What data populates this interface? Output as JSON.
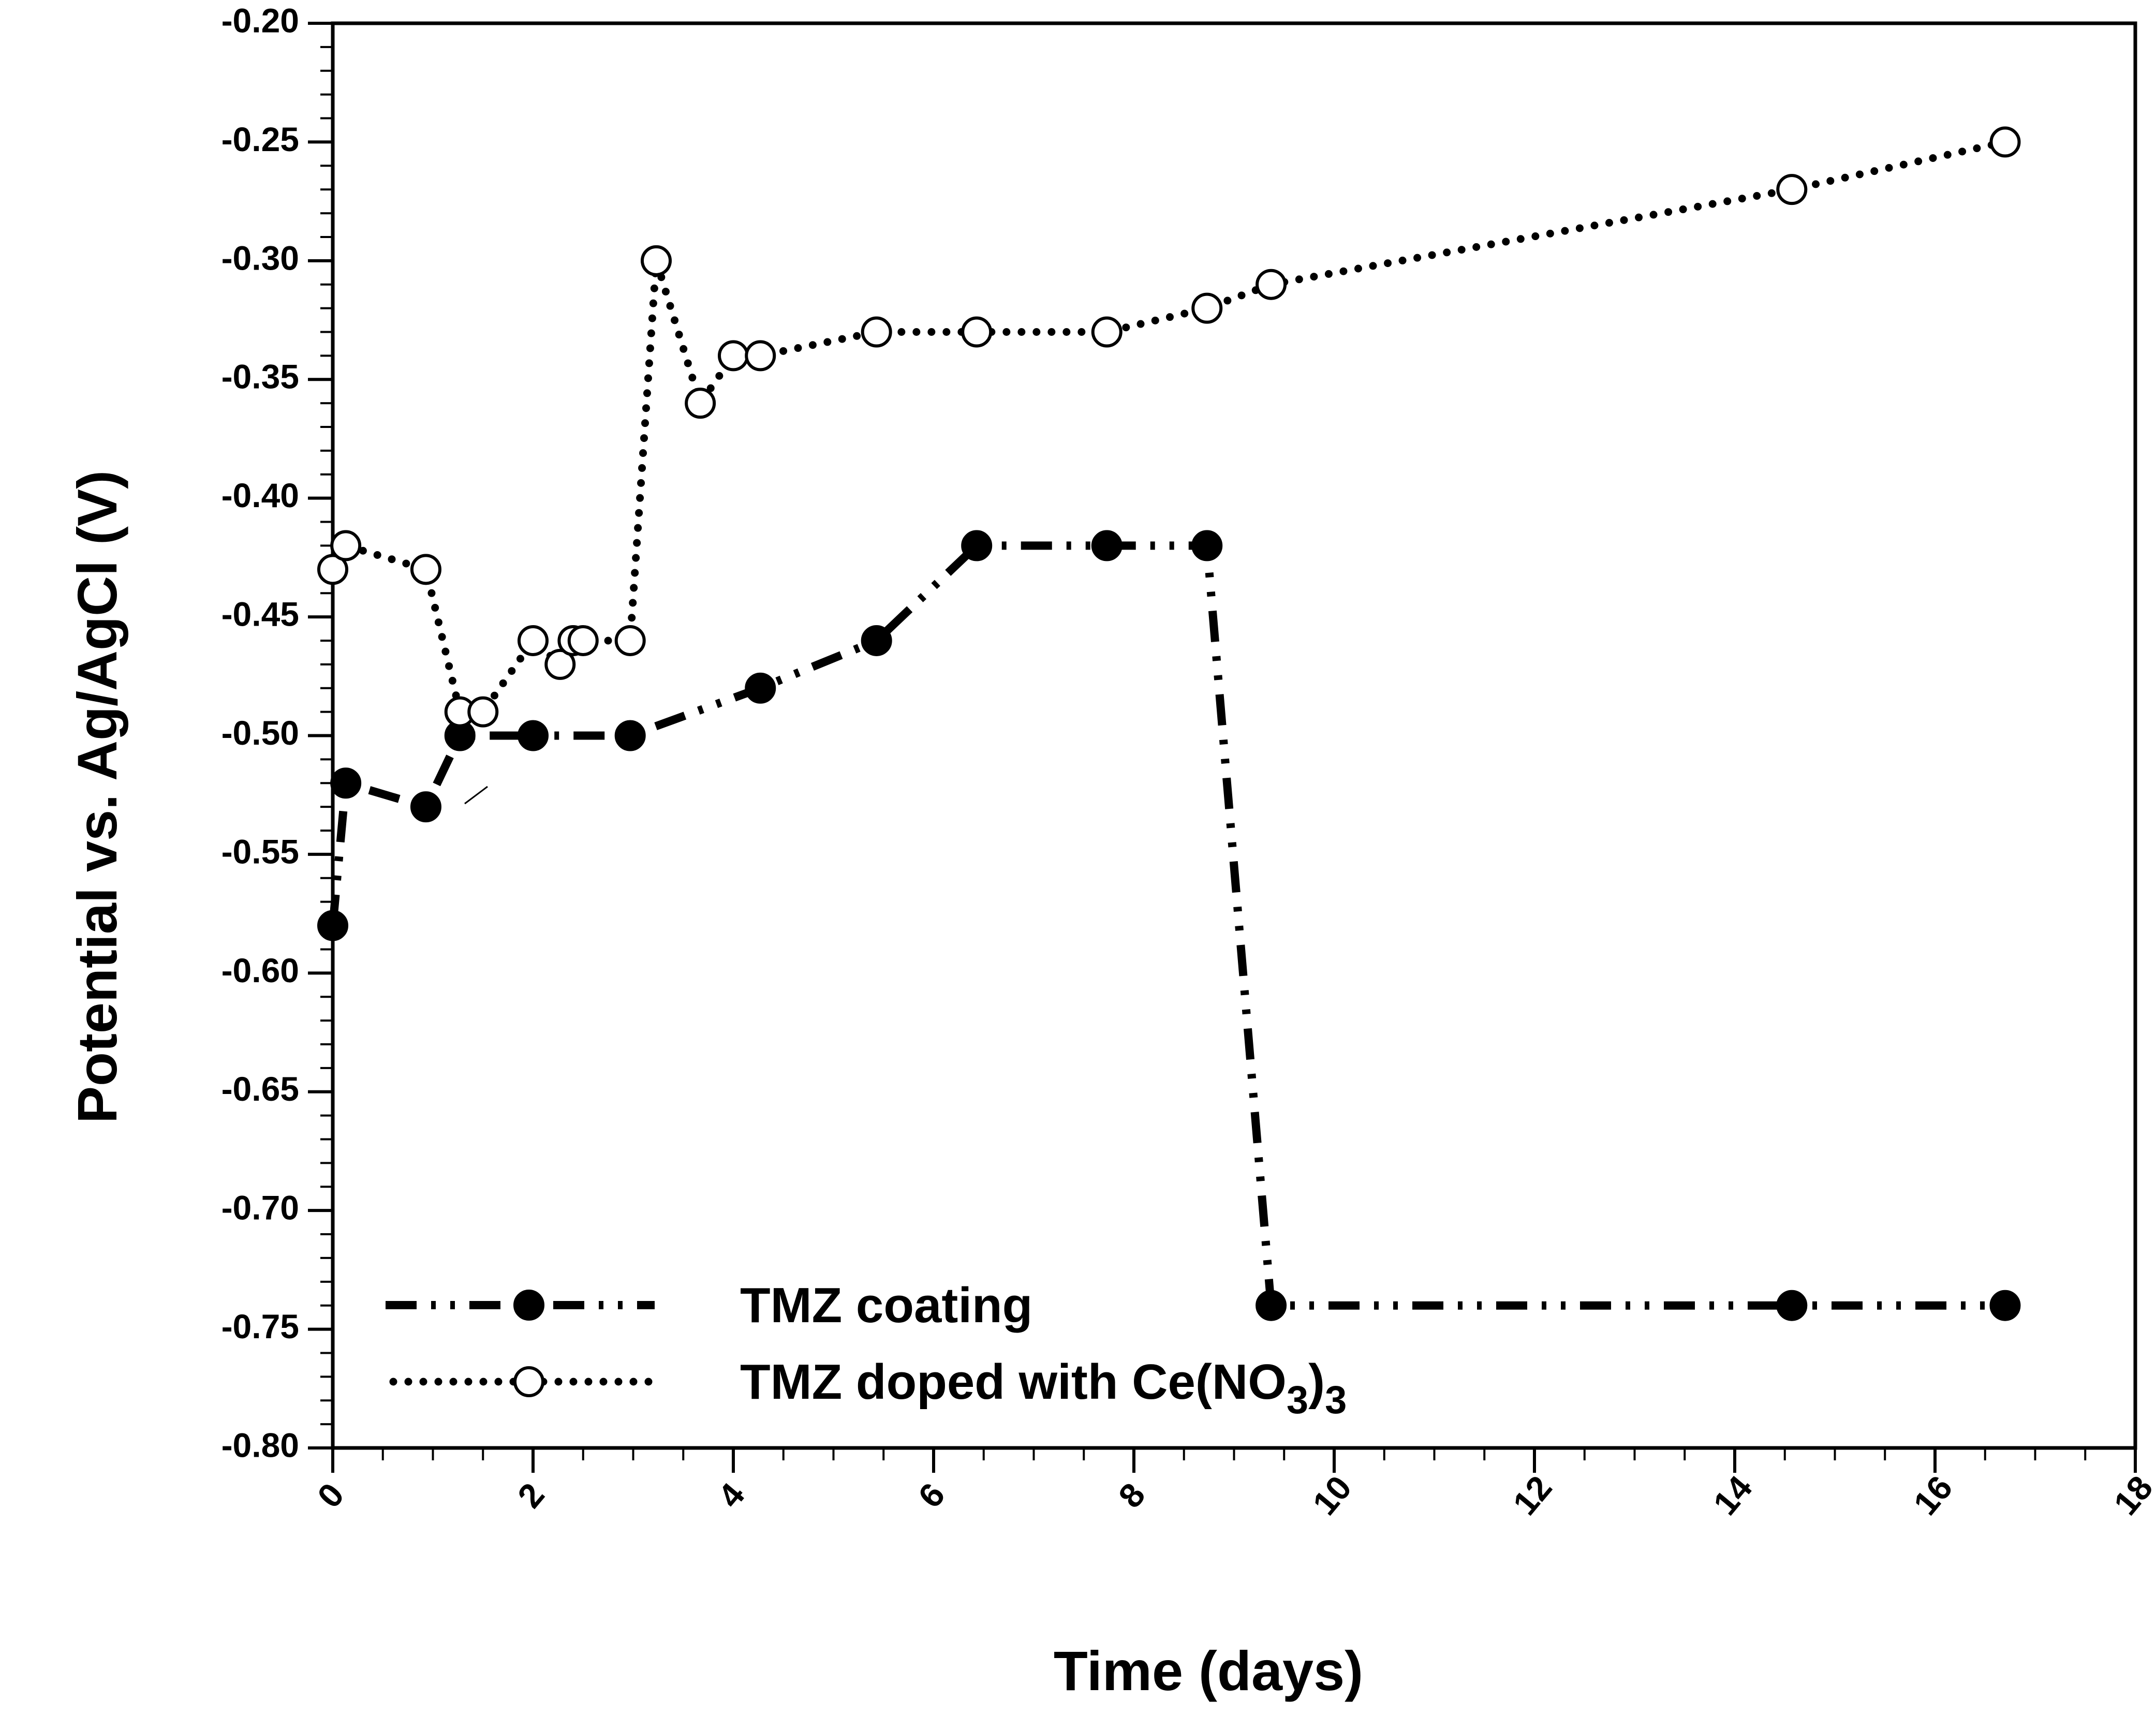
{
  "chart_data": {
    "type": "line",
    "title": "",
    "xlabel": "Time (days)",
    "ylabel": "Potential vs. Ag/AgCl (V)",
    "xlim": [
      0,
      18
    ],
    "ylim": [
      -0.8,
      -0.2
    ],
    "x_ticks": [
      0,
      2,
      4,
      6,
      8,
      10,
      12,
      14,
      16,
      18
    ],
    "x_tick_labels": [
      "0",
      "2",
      "4",
      "6",
      "8",
      "10",
      "12",
      "14",
      "16",
      "18"
    ],
    "y_ticks": [
      -0.2,
      -0.25,
      -0.3,
      -0.35,
      -0.4,
      -0.45,
      -0.5,
      -0.55,
      -0.6,
      -0.65,
      -0.7,
      -0.75,
      -0.8
    ],
    "y_tick_labels": [
      "-0.20",
      "-0.25",
      "-0.30",
      "-0.35",
      "-0.40",
      "-0.45",
      "-0.50",
      "-0.55",
      "-0.60",
      "-0.65",
      "-0.70",
      "-0.75",
      "-0.80"
    ],
    "grid": false,
    "legend_position": "bottom-left",
    "series": [
      {
        "name": "TMZ coating",
        "marker": "filled-circle",
        "line_style": "dash-dot-dot",
        "x": [
          0,
          0.13,
          0.93,
          1.27,
          2.0,
          2.97,
          4.27,
          5.43,
          6.43,
          7.73,
          8.73,
          9.37,
          14.57,
          16.7
        ],
        "y": [
          -0.58,
          -0.52,
          -0.53,
          -0.5,
          -0.5,
          -0.5,
          -0.48,
          -0.46,
          -0.42,
          -0.42,
          -0.42,
          -0.74,
          -0.74,
          -0.74
        ]
      },
      {
        "name": "TMZ doped with Ce(NO3)3",
        "name_main": "TMZ doped with Ce(NO",
        "name_sub": "3",
        "name_close": ")",
        "name_sub2": "3",
        "marker": "open-circle",
        "line_style": "dotted",
        "x": [
          0,
          0.13,
          0.93,
          1.27,
          1.5,
          2.0,
          2.27,
          2.4,
          2.5,
          2.97,
          3.23,
          3.67,
          4.0,
          4.27,
          5.43,
          6.43,
          7.73,
          8.73,
          9.37,
          14.57,
          16.7
        ],
        "y": [
          -0.43,
          -0.42,
          -0.43,
          -0.49,
          -0.49,
          -0.46,
          -0.47,
          -0.46,
          -0.46,
          -0.46,
          -0.3,
          -0.36,
          -0.34,
          -0.34,
          -0.33,
          -0.33,
          -0.33,
          -0.32,
          -0.31,
          -0.27,
          -0.25
        ]
      }
    ]
  }
}
